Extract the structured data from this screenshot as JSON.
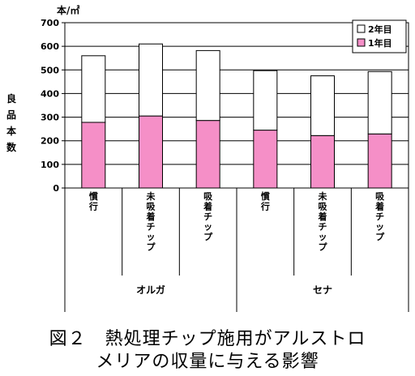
{
  "chart_data": {
    "type": "bar",
    "stacked": true,
    "unit_label": "本/㎡",
    "ylabel": "良品本数",
    "ylim": [
      0,
      700
    ],
    "yticks": [
      0,
      100,
      200,
      300,
      400,
      500,
      600,
      700
    ],
    "grid": true,
    "legend_position": "top-right",
    "groups": [
      {
        "name": "オルガ",
        "categories": [
          "慣行",
          "未吸着チップ",
          "吸着チップ"
        ]
      },
      {
        "name": "セナ",
        "categories": [
          "慣行",
          "未吸着チップ",
          "吸着チップ"
        ]
      }
    ],
    "series": [
      {
        "name": "1年目",
        "color": "#f58fc7",
        "values": [
          278,
          305,
          286,
          245,
          222,
          229
        ]
      },
      {
        "name": "2年目",
        "color": "#ffffff",
        "values": [
          282,
          305,
          296,
          252,
          253,
          264
        ]
      }
    ]
  },
  "caption": {
    "line1": "図２　熱処理チップ施用がアルストロ",
    "line2": "メリアの収量に与える影響"
  }
}
